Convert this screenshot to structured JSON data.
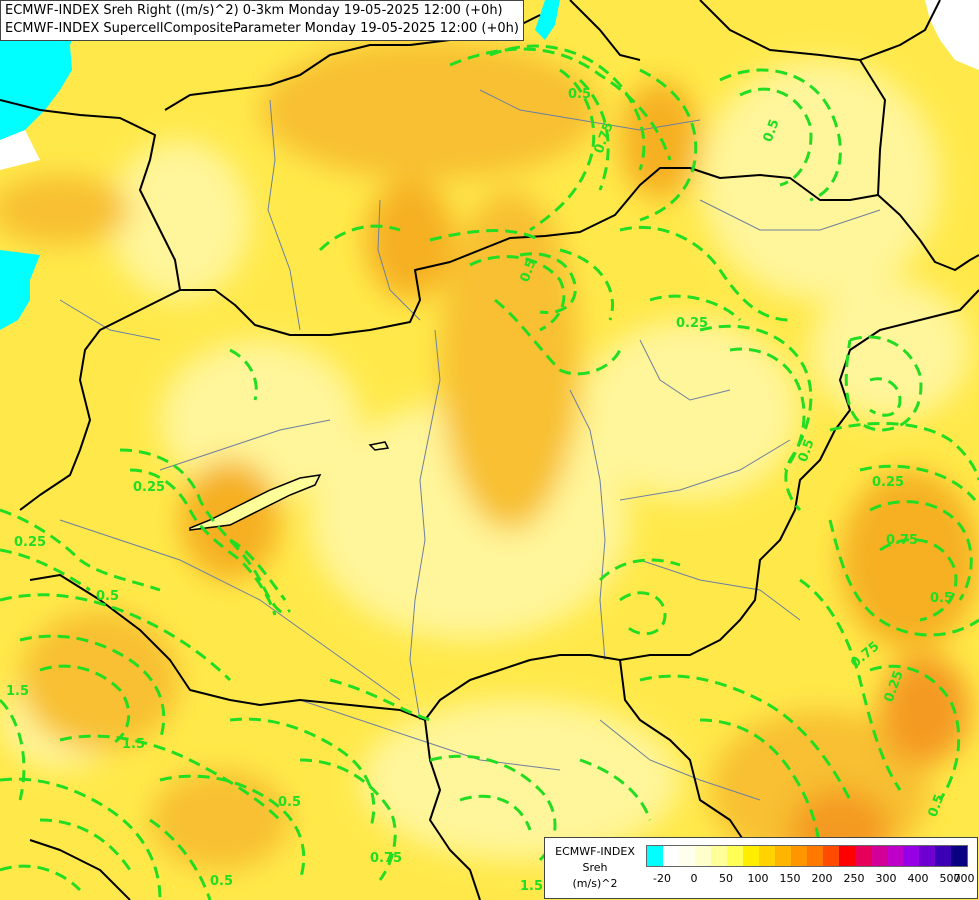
{
  "header": {
    "line1": "ECMWF-INDEX Sreh Right ((m/s)^2) 0-3km Monday 19-05-2025 12:00 (+0h)",
    "line2": "ECMWF-INDEX SupercellCompositeParameter Monday 19-05-2025 12:00 (+0h)"
  },
  "legend": {
    "title_line1": "ECMWF-INDEX",
    "title_line2": "Sreh",
    "title_line3": "(m/s)^2",
    "tick_labels": [
      "-20",
      "0",
      "50",
      "100",
      "150",
      "200",
      "250",
      "300",
      "400",
      "500",
      "700"
    ],
    "colors": [
      "#00ffff",
      "#ffffff",
      "#ffffee",
      "#ffffcc",
      "#ffff99",
      "#ffff55",
      "#ffee00",
      "#ffd200",
      "#ffb400",
      "#ff9600",
      "#ff7800",
      "#ff4b00",
      "#ff0000",
      "#e6005a",
      "#d20096",
      "#be00c8",
      "#9600e6",
      "#6e00d2",
      "#3c00b4",
      "#0a0082"
    ]
  },
  "contour_labels": [
    "0.5",
    "0.75",
    "0.5",
    "0.5",
    "0.25",
    "0.25",
    "0.25",
    "0.5",
    "0.25",
    "0.5",
    "0.75",
    "0.5",
    "0.75",
    "1.5",
    "0.5",
    "0.75",
    "1.5",
    "1.5",
    "0.5",
    "0.5",
    "0.25"
  ],
  "colors": {
    "background_yellow": "#ffe94a",
    "light_yellow": "#fff59a",
    "orange": "#f8b828",
    "deep_orange": "#f49a20",
    "water": "#00ffff",
    "contour": "#22dd22",
    "border": "#000000",
    "river": "#6e7fa0"
  }
}
